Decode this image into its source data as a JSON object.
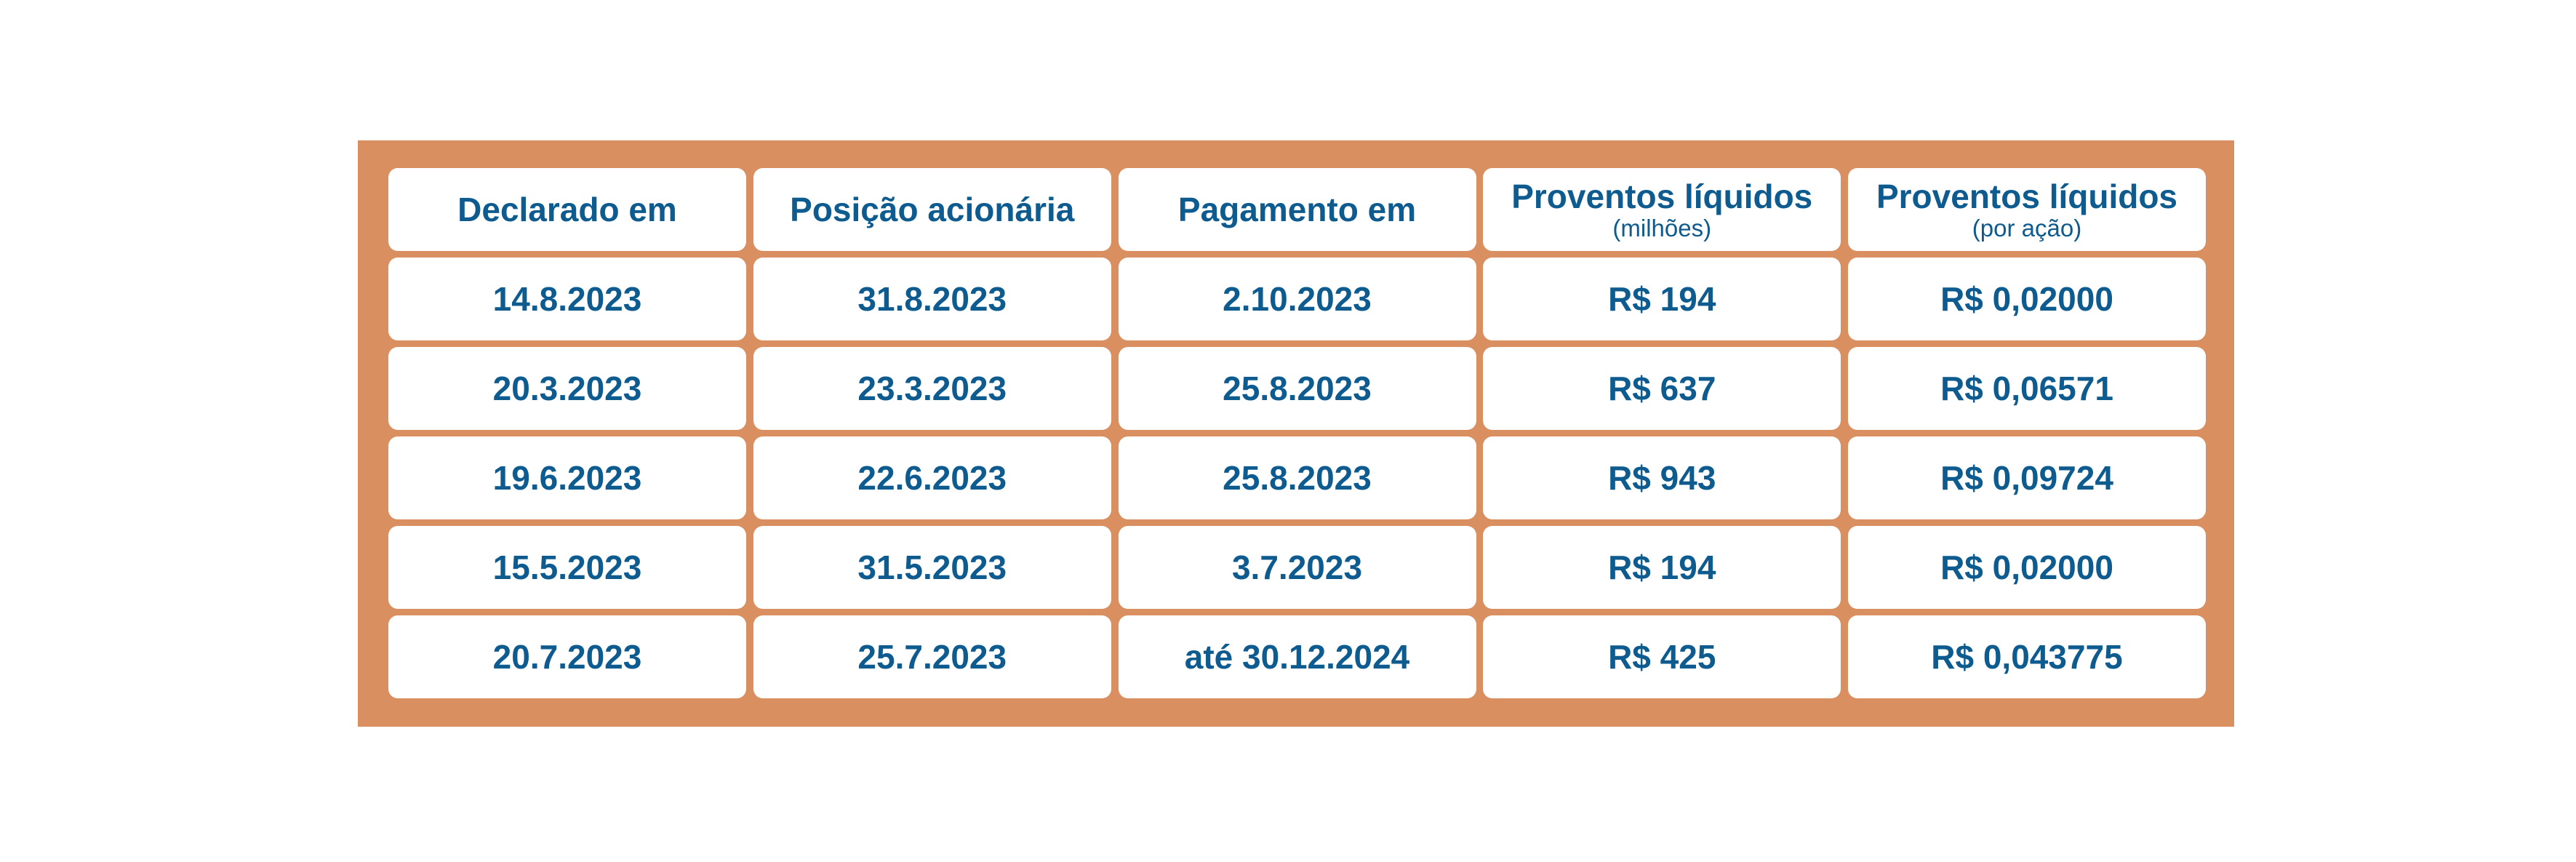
{
  "table": {
    "headers": [
      {
        "label": "Declarado em",
        "sub": ""
      },
      {
        "label": "Posição acionária",
        "sub": ""
      },
      {
        "label": "Pagamento em",
        "sub": ""
      },
      {
        "label": "Proventos líquidos",
        "sub": "(milhões)"
      },
      {
        "label": "Proventos líquidos",
        "sub": "(por ação)"
      }
    ],
    "rows": [
      [
        "14.8.2023",
        "31.8.2023",
        "2.10.2023",
        "R$ 194",
        "R$ 0,02000"
      ],
      [
        "20.3.2023",
        "23.3.2023",
        "25.8.2023",
        "R$ 637",
        "R$ 0,06571"
      ],
      [
        "19.6.2023",
        "22.6.2023",
        "25.8.2023",
        "R$ 943",
        "R$ 0,09724"
      ],
      [
        "15.5.2023",
        "31.5.2023",
        "3.7.2023",
        "R$ 194",
        "R$ 0,02000"
      ],
      [
        "20.7.2023",
        "25.7.2023",
        "até 30.12.2024",
        "R$ 425",
        "R$ 0,043775"
      ]
    ]
  },
  "colors": {
    "frame": "#d98f5f",
    "text": "#0e5b8f",
    "cell": "#ffffff"
  }
}
